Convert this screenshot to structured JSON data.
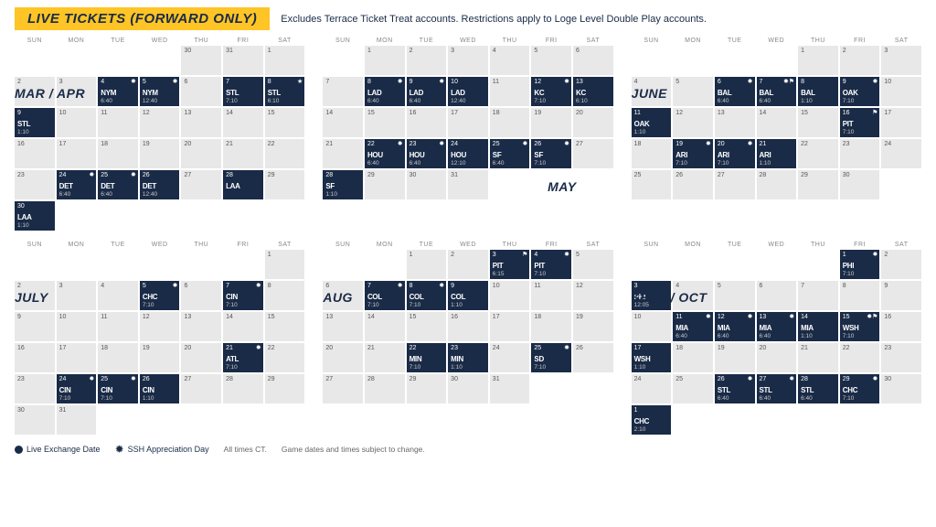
{
  "header": {
    "banner": "LIVE TICKETS (FORWARD ONLY)",
    "subtext": "Excludes Terrace Ticket Treat accounts. Restrictions apply to Loge Level Double Play accounts."
  },
  "dow": [
    "SUN",
    "MON",
    "TUE",
    "WED",
    "THU",
    "FRI",
    "SAT"
  ],
  "legend": {
    "live": "Live Exchange Date",
    "ssh": "SSH Appreciation Day",
    "note1": "All times CT.",
    "note2": "Game dates and times subject to change."
  },
  "months": [
    {
      "title": "MAR / APR",
      "title_in_row": 1,
      "weeks": [
        [
          null,
          null,
          null,
          null,
          {
            "n": 30
          },
          {
            "n": 31
          },
          {
            "n": 1
          }
        ],
        [
          {
            "n": 2
          },
          {
            "n": 3
          },
          {
            "n": 4,
            "g": "NYM",
            "t": "6:40",
            "i": "✹"
          },
          {
            "n": 5,
            "g": "NYM",
            "t": "12:40",
            "i": "✹"
          },
          {
            "n": 6
          },
          {
            "n": 7,
            "g": "STL",
            "t": "7:10"
          },
          {
            "n": 8,
            "g": "STL",
            "t": "6:10",
            "i": "★"
          }
        ],
        [
          {
            "n": 9,
            "g": "STL",
            "t": "1:10"
          },
          {
            "n": 10
          },
          {
            "n": 11
          },
          {
            "n": 12
          },
          {
            "n": 13
          },
          {
            "n": 14
          },
          {
            "n": 15
          }
        ],
        [
          {
            "n": 16
          },
          {
            "n": 17
          },
          {
            "n": 18
          },
          {
            "n": 19
          },
          {
            "n": 20
          },
          {
            "n": 21
          },
          {
            "n": 22
          }
        ],
        [
          {
            "n": 23
          },
          {
            "n": 24,
            "g": "DET",
            "t": "6:40",
            "i": "✹"
          },
          {
            "n": 25,
            "g": "DET",
            "t": "6:40",
            "i": "✹"
          },
          {
            "n": 26,
            "g": "DET",
            "t": "12:40"
          },
          {
            "n": 27
          },
          {
            "n": 28,
            "g": "LAA",
            "t": ""
          },
          {
            "n": 29,
            "i2": "⚑"
          }
        ],
        [
          {
            "n": 30,
            "g": "LAA",
            "t": "1:10"
          },
          null,
          null,
          null,
          null,
          null,
          null
        ]
      ]
    },
    {
      "title": "MAY",
      "title_right": true,
      "title_in_row": 4,
      "weeks": [
        [
          null,
          {
            "n": 1
          },
          {
            "n": 2
          },
          {
            "n": 3
          },
          {
            "n": 4
          },
          {
            "n": 5
          },
          {
            "n": 6
          }
        ],
        [
          {
            "n": 7
          },
          {
            "n": 8,
            "g": "LAD",
            "t": "6:40",
            "i": "✹"
          },
          {
            "n": 9,
            "g": "LAD",
            "t": "6:40",
            "i": "✹"
          },
          {
            "n": 10,
            "g": "LAD",
            "t": "12:40"
          },
          {
            "n": 11
          },
          {
            "n": 12,
            "g": "KC",
            "t": "7:10",
            "i": "✹"
          },
          {
            "n": 13,
            "g": "KC",
            "t": "6:10"
          }
        ],
        [
          {
            "n": 14
          },
          {
            "n": 15
          },
          {
            "n": 16
          },
          {
            "n": 17
          },
          {
            "n": 18
          },
          {
            "n": 19
          },
          {
            "n": 20
          }
        ],
        [
          {
            "n": 21
          },
          {
            "n": 22,
            "g": "HOU",
            "t": "6:40",
            "i": "✹"
          },
          {
            "n": 23,
            "g": "HOU",
            "t": "6:40",
            "i": "✹"
          },
          {
            "n": 24,
            "g": "HOU",
            "t": "12:10"
          },
          {
            "n": 25,
            "g": "SF",
            "t": "6:40",
            "i": "✹"
          },
          {
            "n": 26,
            "g": "SF",
            "t": "7:10",
            "i": "✹"
          },
          {
            "n": 27
          }
        ],
        [
          {
            "n": 28,
            "g": "SF",
            "t": "1:10"
          },
          {
            "n": 29
          },
          {
            "n": 30
          },
          {
            "n": 31
          },
          null,
          null,
          null
        ]
      ]
    },
    {
      "title": "JUNE",
      "title_in_row": 1,
      "weeks": [
        [
          null,
          null,
          null,
          null,
          {
            "n": 1
          },
          {
            "n": 2
          },
          {
            "n": 3
          }
        ],
        [
          {
            "n": 4
          },
          {
            "n": 5
          },
          {
            "n": 6,
            "g": "BAL",
            "t": "6:40",
            "i": "✹"
          },
          {
            "n": 7,
            "g": "BAL",
            "t": "6:40",
            "i": "✹⚑"
          },
          {
            "n": 8,
            "g": "BAL",
            "t": "1:10"
          },
          {
            "n": 9,
            "g": "OAK",
            "t": "7:10",
            "i": "✹"
          },
          {
            "n": 10
          }
        ],
        [
          {
            "n": 11,
            "g": "OAK",
            "t": "1:10"
          },
          {
            "n": 12
          },
          {
            "n": 13
          },
          {
            "n": 14
          },
          {
            "n": 15
          },
          {
            "n": 16,
            "g": "PIT",
            "t": "7:10",
            "i": "⚑"
          },
          {
            "n": 17
          }
        ],
        [
          {
            "n": 18
          },
          {
            "n": 19,
            "g": "ARI",
            "t": "7:10",
            "i": "✹"
          },
          {
            "n": 20,
            "g": "ARI",
            "t": "7:10",
            "i": "✹"
          },
          {
            "n": 21,
            "g": "ARI",
            "t": "1:10"
          },
          {
            "n": 22
          },
          {
            "n": 23
          },
          {
            "n": 24
          }
        ],
        [
          {
            "n": 25
          },
          {
            "n": 26
          },
          {
            "n": 27
          },
          {
            "n": 28
          },
          {
            "n": 29
          },
          {
            "n": 30
          },
          null
        ]
      ]
    },
    {
      "title": "JULY",
      "title_in_row": 1,
      "weeks": [
        [
          null,
          null,
          null,
          null,
          null,
          null,
          {
            "n": 1
          }
        ],
        [
          {
            "n": 2
          },
          {
            "n": 3
          },
          {
            "n": 4
          },
          {
            "n": 5,
            "g": "CHC",
            "t": "7:10",
            "i": "✹"
          },
          {
            "n": 6
          },
          {
            "n": 7,
            "g": "CIN",
            "t": "7:10",
            "i": "✹"
          },
          {
            "n": 8
          }
        ],
        [
          {
            "n": 9
          },
          {
            "n": 10
          },
          {
            "n": 11
          },
          {
            "n": 12
          },
          {
            "n": 13
          },
          {
            "n": 14
          },
          {
            "n": 15
          }
        ],
        [
          {
            "n": 16
          },
          {
            "n": 17
          },
          {
            "n": 18
          },
          {
            "n": 19
          },
          {
            "n": 20
          },
          {
            "n": 21,
            "g": "ATL",
            "t": "7:10",
            "i": "✹"
          },
          {
            "n": 22
          }
        ],
        [
          {
            "n": 23
          },
          {
            "n": 24,
            "g": "CIN",
            "t": "7:10",
            "i": "✹"
          },
          {
            "n": 25,
            "g": "CIN",
            "t": "7:10",
            "i": "✹"
          },
          {
            "n": 26,
            "g": "CIN",
            "t": "1:10"
          },
          {
            "n": 27
          },
          {
            "n": 28
          },
          {
            "n": 29
          }
        ],
        [
          {
            "n": 30
          },
          {
            "n": 31
          },
          null,
          null,
          null,
          null,
          null
        ]
      ]
    },
    {
      "title": "AUG",
      "title_in_row": 1,
      "weeks": [
        [
          null,
          null,
          {
            "n": 1
          },
          {
            "n": 2
          },
          {
            "n": 3,
            "g": "PIT",
            "t": "6:15",
            "i": "⚑"
          },
          {
            "n": 4,
            "g": "PIT",
            "t": "7:10",
            "i": "✹"
          },
          {
            "n": 5
          }
        ],
        [
          {
            "n": 6
          },
          {
            "n": 7,
            "g": "COL",
            "t": "7:10",
            "i": "✹"
          },
          {
            "n": 8,
            "g": "COL",
            "t": "7:10",
            "i": "✹"
          },
          {
            "n": 9,
            "g": "COL",
            "t": "1:10"
          },
          {
            "n": 10
          },
          {
            "n": 11
          },
          {
            "n": 12
          }
        ],
        [
          {
            "n": 13
          },
          {
            "n": 14
          },
          {
            "n": 15
          },
          {
            "n": 16
          },
          {
            "n": 17
          },
          {
            "n": 18
          },
          {
            "n": 19
          }
        ],
        [
          {
            "n": 20
          },
          {
            "n": 21
          },
          {
            "n": 22,
            "g": "MIN",
            "t": "7:10"
          },
          {
            "n": 23,
            "g": "MIN",
            "t": "1:10"
          },
          {
            "n": 24
          },
          {
            "n": 25,
            "g": "SD",
            "t": "7:10",
            "i": "✹"
          },
          {
            "n": 26
          }
        ],
        [
          {
            "n": 27
          },
          {
            "n": 28
          },
          {
            "n": 29
          },
          {
            "n": 30
          },
          {
            "n": 31
          },
          null,
          null
        ]
      ]
    },
    {
      "title": "SEPT / OCT",
      "title_in_row": 1,
      "weeks": [
        [
          null,
          null,
          null,
          null,
          null,
          {
            "n": 1,
            "g": "PHI",
            "t": "7:10",
            "i": "✹"
          },
          {
            "n": 2
          }
        ],
        [
          {
            "n": 3,
            "g": "PHI",
            "t": "12:05"
          },
          {
            "n": 4
          },
          {
            "n": 5
          },
          {
            "n": 6
          },
          {
            "n": 7
          },
          {
            "n": 8
          },
          {
            "n": 9
          }
        ],
        [
          {
            "n": 10
          },
          {
            "n": 11,
            "g": "MIA",
            "t": "6:40",
            "i": "✹"
          },
          {
            "n": 12,
            "g": "MIA",
            "t": "6:40",
            "i": "✹"
          },
          {
            "n": 13,
            "g": "MIA",
            "t": "6:40",
            "i": "✹"
          },
          {
            "n": 14,
            "g": "MIA",
            "t": "1:10"
          },
          {
            "n": 15,
            "g": "WSH",
            "t": "7:10",
            "i": "✹⚑"
          },
          {
            "n": 16
          }
        ],
        [
          {
            "n": 17,
            "g": "WSH",
            "t": "1:10"
          },
          {
            "n": 18
          },
          {
            "n": 19
          },
          {
            "n": 20
          },
          {
            "n": 21
          },
          {
            "n": 22
          },
          {
            "n": 23
          }
        ],
        [
          {
            "n": 24
          },
          {
            "n": 25
          },
          {
            "n": 26,
            "g": "STL",
            "t": "6:40",
            "i": "✹"
          },
          {
            "n": 27,
            "g": "STL",
            "t": "6:40",
            "i": "✹"
          },
          {
            "n": 28,
            "g": "STL",
            "t": "6:40"
          },
          {
            "n": 29,
            "g": "CHC",
            "t": "7:10",
            "i": "✹"
          },
          {
            "n": 30
          }
        ],
        [
          {
            "n": 1,
            "g": "CHC",
            "t": "2:10"
          },
          null,
          null,
          null,
          null,
          null,
          null
        ]
      ]
    }
  ]
}
